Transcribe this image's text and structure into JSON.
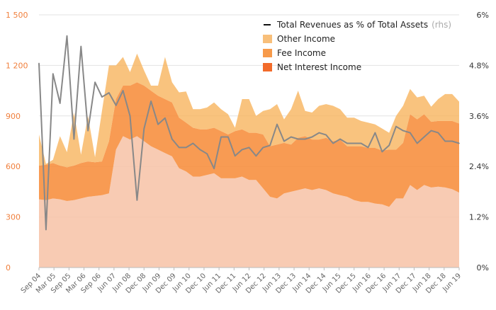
{
  "chart_data": {
    "type": "area",
    "stacked": true,
    "grid": true,
    "legend_position": "top-right",
    "x": [
      "Sep 04",
      "Dec 04",
      "Mar 05",
      "Jun 05",
      "Sep 05",
      "Dec 05",
      "Mar 06",
      "Jun 06",
      "Sep 06",
      "Dec 06",
      "Mar 07",
      "Jun 07",
      "Sep 07",
      "Dec 07",
      "Mar 08",
      "Jun 08",
      "Sep 08",
      "Dec 08",
      "Mar 09",
      "Jun 09",
      "Sep 09",
      "Dec 09",
      "Mar 10",
      "Jun 10",
      "Sep 10",
      "Dec 10",
      "Mar 11",
      "Jun 11",
      "Sep 11",
      "Dec 11",
      "Mar 12",
      "Jun 12",
      "Sep 12",
      "Dec 12",
      "Mar 13",
      "Jun 13",
      "Sep 13",
      "Dec 13",
      "Mar 14",
      "Jun 14",
      "Sep 14",
      "Dec 14",
      "Mar 15",
      "Jun 15",
      "Sep 15",
      "Dec 15",
      "Mar 16",
      "Jun 16",
      "Sep 16",
      "Dec 16",
      "Mar 17",
      "Jun 17",
      "Sep 17",
      "Dec 17",
      "Mar 18",
      "Jun 18",
      "Sep 18",
      "Dec 18",
      "Mar 19",
      "Jun 19",
      "Sep 19"
    ],
    "x_tick_labels": [
      "Sep 04",
      "Mar 05",
      "Sep 05",
      "Mar 06",
      "Sep 06",
      "Jun 07",
      "Jun 08",
      "Dec 08",
      "Jun 09",
      "Dec 09",
      "Jun 10",
      "Dec 10",
      "Jun 11",
      "Dec 11",
      "Jun 12",
      "Dec 12",
      "Jun 13",
      "Dec 13",
      "Jun 14",
      "Dec 14",
      "Jun 15",
      "Dec 15",
      "Jun 16",
      "Dec 16",
      "Jun 17",
      "Dec 17",
      "Jun 18",
      "Dec 18",
      "Jun 19"
    ],
    "y_left": {
      "ticks": [
        "0",
        "300",
        "600",
        "900",
        "1 200",
        "1 500"
      ],
      "ylim": [
        0,
        1500
      ]
    },
    "y_right": {
      "ticks": [
        "0%",
        "1.2%",
        "2.4%",
        "3.6%",
        "4.8%",
        "6%"
      ],
      "ylim": [
        0,
        6
      ]
    },
    "series": [
      {
        "name": "Net Interest Income",
        "axis": "left",
        "color": "#f7c2a6",
        "fill_opacity": 0.85,
        "values": [
          405,
          400,
          410,
          405,
          395,
          400,
          410,
          420,
          425,
          430,
          440,
          700,
          780,
          760,
          780,
          750,
          720,
          700,
          680,
          660,
          590,
          570,
          540,
          540,
          550,
          560,
          530,
          530,
          530,
          540,
          520,
          520,
          470,
          420,
          410,
          440,
          450,
          460,
          470,
          460,
          470,
          460,
          440,
          430,
          420,
          400,
          390,
          390,
          380,
          375,
          360,
          410,
          410,
          490,
          460,
          490,
          475,
          480,
          475,
          465,
          445
        ]
      },
      {
        "name": "Fee Income",
        "axis": "left",
        "color": "#f78a35",
        "fill_opacity": 0.85,
        "values": [
          200,
          210,
          210,
          200,
          200,
          205,
          210,
          210,
          200,
          200,
          310,
          300,
          300,
          320,
          320,
          330,
          330,
          320,
          320,
          320,
          300,
          290,
          290,
          280,
          270,
          270,
          280,
          260,
          280,
          280,
          280,
          280,
          320,
          300,
          320,
          300,
          280,
          310,
          310,
          300,
          290,
          310,
          310,
          330,
          300,
          320,
          330,
          320,
          330,
          320,
          340,
          290,
          330,
          420,
          420,
          420,
          390,
          390,
          395,
          405,
          410
        ]
      },
      {
        "name": "Other Income",
        "axis": "left",
        "color": "#f8b45e",
        "fill_opacity": 0.8,
        "values": [
          185,
          5,
          20,
          175,
          90,
          315,
          50,
          270,
          30,
          300,
          450,
          200,
          170,
          80,
          170,
          90,
          30,
          60,
          250,
          120,
          150,
          185,
          110,
          120,
          130,
          150,
          130,
          120,
          20,
          180,
          200,
          100,
          140,
          220,
          240,
          140,
          210,
          280,
          150,
          160,
          200,
          200,
          210,
          180,
          170,
          170,
          150,
          150,
          140,
          130,
          100,
          200,
          220,
          150,
          130,
          110,
          90,
          130,
          160,
          160,
          130
        ]
      },
      {
        "name": "Total Revenues as % of Total Assets",
        "axis": "right",
        "color": "#888888",
        "values": [
          4.85,
          0.9,
          4.6,
          3.9,
          5.5,
          3.05,
          5.25,
          3.25,
          4.4,
          4.05,
          4.15,
          3.85,
          4.2,
          3.6,
          1.6,
          3.3,
          3.95,
          3.4,
          3.55,
          3.05,
          2.85,
          2.85,
          2.95,
          2.8,
          2.7,
          2.35,
          3.1,
          3.1,
          2.65,
          2.8,
          2.85,
          2.65,
          2.85,
          2.9,
          3.4,
          3.0,
          3.1,
          3.05,
          3.05,
          3.1,
          3.2,
          3.15,
          2.95,
          3.05,
          2.95,
          2.95,
          2.95,
          2.85,
          3.2,
          2.75,
          2.9,
          3.35,
          3.25,
          3.2,
          2.95,
          3.1,
          3.25,
          3.2,
          3.0,
          3.0,
          2.95
        ]
      }
    ],
    "legend": [
      {
        "label": "Total Revenues as % of Total Assets",
        "note": "(rhs)",
        "swatch": "line",
        "color": "#111111"
      },
      {
        "label": "Other Income",
        "note": "",
        "swatch": "box",
        "color": "#f8bf7a"
      },
      {
        "label": "Fee Income",
        "note": "",
        "swatch": "box",
        "color": "#f79a4a"
      },
      {
        "label": "Net Interest Income",
        "note": "",
        "swatch": "box",
        "color": "#f26b2a"
      }
    ]
  }
}
